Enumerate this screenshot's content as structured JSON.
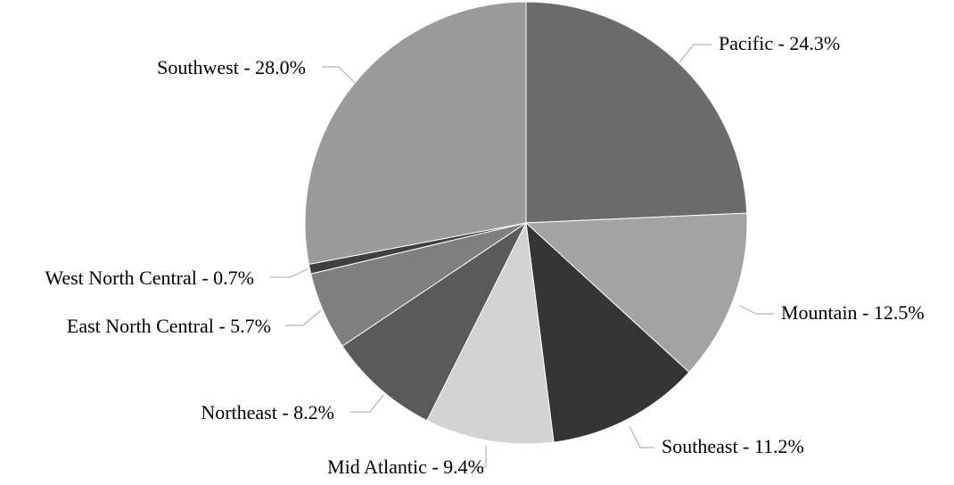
{
  "chart_data": {
    "type": "pie",
    "title": "",
    "categories": [
      "Pacific",
      "Mountain",
      "Southeast",
      "Mid Atlantic",
      "Northeast",
      "East North Central",
      "West North Central",
      "Southwest"
    ],
    "values": [
      24.3,
      12.5,
      11.2,
      9.4,
      8.2,
      5.7,
      0.7,
      28.0
    ],
    "labels": [
      "Pacific - 24.3%",
      "Mountain - 12.5%",
      "Southeast - 11.2%",
      "Mid Atlantic - 9.4%",
      "Northeast - 8.2%",
      "East North Central - 5.7%",
      "West North Central - 0.7%",
      "Southwest - 28.0%"
    ],
    "colors": [
      "#6b6b6b",
      "#a3a3a3",
      "#353535",
      "#d3d3d3",
      "#5a5a5a",
      "#7f7f7f",
      "#404040",
      "#9a9a9a"
    ],
    "start_angle": "12 o'clock",
    "direction": "clockwise",
    "legend": "none",
    "data_labels": "outside with leader lines"
  }
}
